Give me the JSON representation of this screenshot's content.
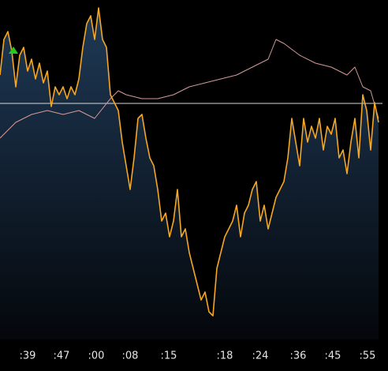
{
  "chart_data": {
    "type": "line",
    "xlim": [
      0,
      97
    ],
    "ylim": [
      0,
      430
    ],
    "xticks": [
      {
        "value": 7,
        "label": ":39"
      },
      {
        "value": 15.6,
        "label": ":47"
      },
      {
        "value": 24.4,
        "label": ":00"
      },
      {
        "value": 33,
        "label": ":08"
      },
      {
        "value": 42.8,
        "label": ":15"
      },
      {
        "value": 57,
        "label": ":18"
      },
      {
        "value": 66,
        "label": ":24"
      },
      {
        "value": 75.6,
        "label": ":36"
      },
      {
        "value": 84.4,
        "label": ":45"
      },
      {
        "value": 93.2,
        "label": ":55"
      }
    ],
    "reference": 299,
    "reference_color": "#d8d8d8",
    "area_colors": [
      "#1f3a57",
      "#04070b"
    ],
    "marker": {
      "x": 3.4,
      "value": 366,
      "color": "#22cc22"
    },
    "series": [
      {
        "color": "#f5a623",
        "x": [
          0,
          1,
          2,
          3,
          4,
          5,
          6,
          7,
          8,
          9,
          10,
          11,
          12,
          13,
          14,
          15,
          16,
          17,
          18,
          19,
          20,
          21,
          22,
          23,
          24,
          25,
          26,
          27,
          28,
          29,
          30,
          31,
          32,
          33,
          34,
          35,
          36,
          37,
          38,
          39,
          40,
          41,
          42,
          43,
          44,
          45,
          46,
          47,
          48,
          49,
          50,
          51,
          52,
          53,
          54,
          55,
          56,
          57,
          58,
          59,
          60,
          61,
          62,
          63,
          64,
          65,
          66,
          67,
          68,
          69,
          70,
          71,
          72,
          73,
          74,
          75,
          76,
          77,
          78,
          79,
          80,
          81,
          82,
          83,
          84,
          85,
          86,
          87,
          88,
          89,
          90,
          91,
          92,
          93,
          94,
          95,
          96
        ],
        "values": [
          335,
          380,
          390,
          365,
          320,
          360,
          370,
          340,
          355,
          330,
          350,
          325,
          340,
          295,
          320,
          310,
          320,
          305,
          320,
          310,
          330,
          370,
          400,
          410,
          380,
          420,
          380,
          370,
          310,
          300,
          290,
          250,
          220,
          190,
          230,
          280,
          285,
          255,
          230,
          220,
          190,
          150,
          160,
          130,
          150,
          190,
          130,
          140,
          110,
          90,
          70,
          50,
          60,
          35,
          30,
          90,
          110,
          130,
          140,
          150,
          170,
          130,
          160,
          170,
          190,
          200,
          150,
          170,
          140,
          160,
          180,
          190,
          200,
          230,
          280,
          250,
          220,
          280,
          250,
          270,
          255,
          280,
          240,
          270,
          260,
          280,
          230,
          240,
          210,
          250,
          280,
          230,
          310,
          290,
          240,
          300,
          275
        ]
      },
      {
        "color": "#d49a96",
        "x": [
          0,
          4,
          8,
          12,
          16,
          20,
          24,
          28,
          30,
          32,
          36,
          40,
          44,
          48,
          52,
          56,
          60,
          64,
          68,
          70,
          72,
          76,
          80,
          84,
          88,
          90,
          92,
          94,
          96
        ],
        "values": [
          255,
          275,
          285,
          290,
          285,
          290,
          280,
          305,
          315,
          310,
          305,
          305,
          310,
          320,
          325,
          330,
          335,
          345,
          355,
          380,
          375,
          360,
          350,
          345,
          335,
          345,
          320,
          315,
          280
        ]
      }
    ]
  }
}
